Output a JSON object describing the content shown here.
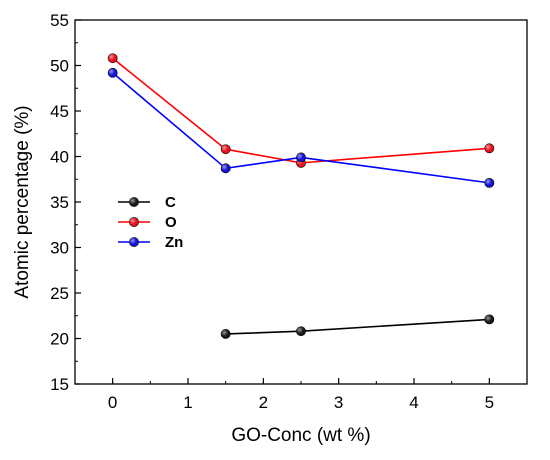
{
  "chart_data": {
    "type": "line",
    "xlabel": "GO-Conc (wt %)",
    "ylabel": "Atomic percentage (%)",
    "xlim": [
      -0.5,
      5.5
    ],
    "ylim": [
      15,
      55
    ],
    "xticks": [
      0,
      1,
      2,
      3,
      4,
      5
    ],
    "yticks": [
      15,
      20,
      25,
      30,
      35,
      40,
      45,
      50,
      55
    ],
    "grid": false,
    "legend_position": "center-left",
    "series": [
      {
        "name": "C",
        "color": "#000000",
        "fill": "#1a1a1a",
        "x": [
          1.5,
          2.5,
          5
        ],
        "y": [
          20.5,
          20.8,
          22.1
        ]
      },
      {
        "name": "O",
        "color": "#ff0000",
        "fill": "#e8101a",
        "x": [
          0,
          1.5,
          2.5,
          5
        ],
        "y": [
          50.8,
          40.8,
          39.3,
          40.9
        ]
      },
      {
        "name": "Zn",
        "color": "#0000ff",
        "fill": "#1414d8",
        "x": [
          0,
          1.5,
          2.5,
          5
        ],
        "y": [
          49.2,
          38.7,
          39.9,
          37.1
        ]
      }
    ]
  }
}
